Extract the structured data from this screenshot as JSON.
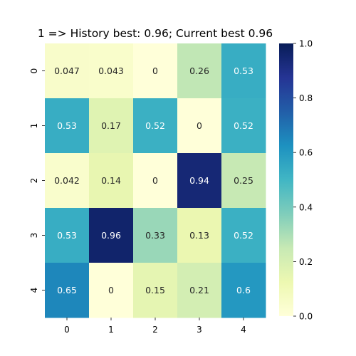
{
  "chart_data": {
    "type": "heatmap",
    "title": "1 => History best: 0.96; Current best 0.96",
    "x_categories": [
      "0",
      "1",
      "2",
      "3",
      "4"
    ],
    "y_categories": [
      "0",
      "1",
      "2",
      "3",
      "4"
    ],
    "values": [
      [
        0.047,
        0.043,
        0,
        0.26,
        0.53
      ],
      [
        0.53,
        0.17,
        0.52,
        0,
        0.52
      ],
      [
        0.042,
        0.14,
        0,
        0.94,
        0.25
      ],
      [
        0.53,
        0.96,
        0.33,
        0.13,
        0.52
      ],
      [
        0.65,
        0,
        0.15,
        0.21,
        0.6
      ]
    ],
    "value_range": [
      0.0,
      1.0
    ],
    "colormap": "YlGnBu",
    "colorbar_ticks": [
      "0.0",
      "0.2",
      "0.4",
      "0.6",
      "0.8",
      "1.0"
    ],
    "annotated": true,
    "grid": false
  },
  "colors": {
    "colormap_stops": [
      "#ffffd9",
      "#edf8b1",
      "#c7e9b4",
      "#7fcdbb",
      "#41b6c4",
      "#1d91c0",
      "#225ea8",
      "#253494",
      "#081d58"
    ],
    "dark_text": "#262626",
    "light_text": "#ffffff"
  }
}
